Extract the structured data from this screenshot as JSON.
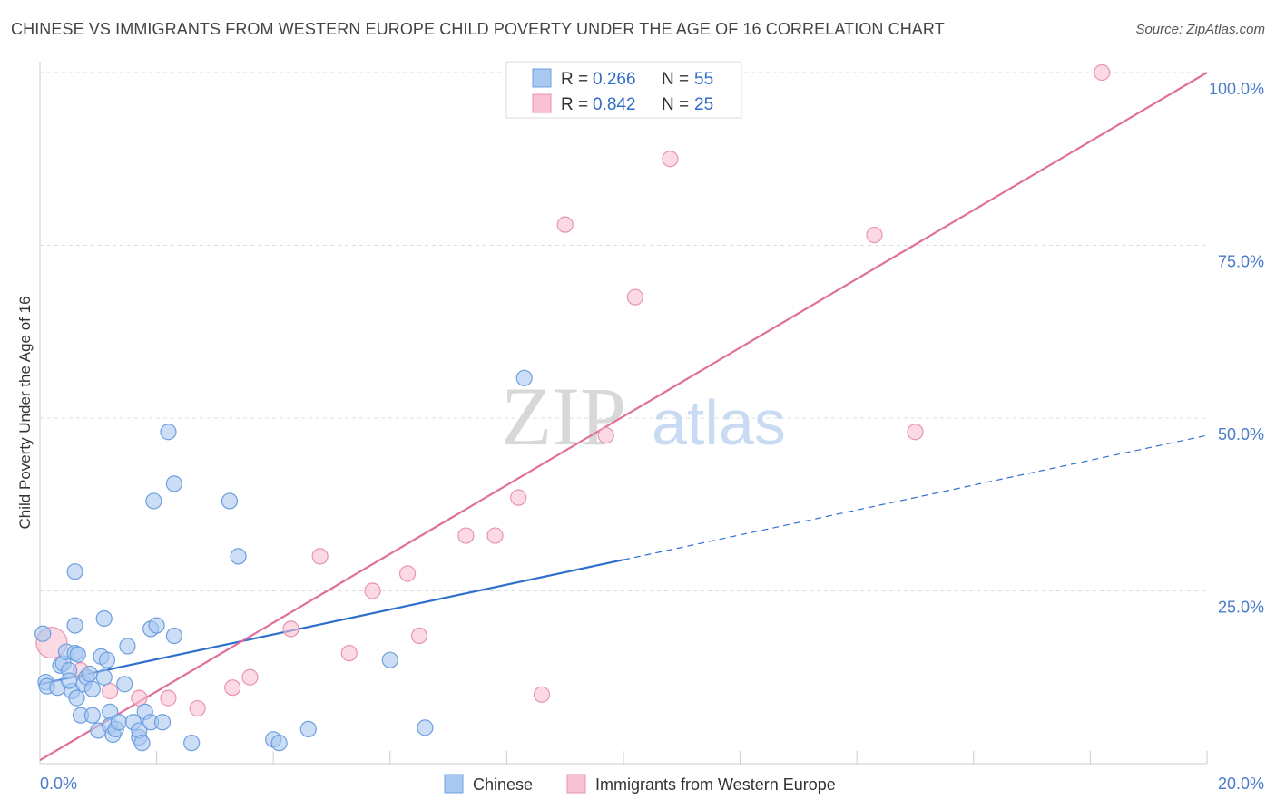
{
  "header": {
    "title": "CHINESE VS IMMIGRANTS FROM WESTERN EUROPE CHILD POVERTY UNDER THE AGE OF 16 CORRELATION CHART",
    "source": "Source: ZipAtlas.com"
  },
  "watermark": {
    "zip": "ZIP",
    "atlas": "atlas"
  },
  "colors": {
    "chinese_fill": "#a9c8f0",
    "chinese_stroke": "#6d9fe0",
    "chinese_line": "#2f6fcc",
    "western_fill": "#f8c2d2",
    "western_stroke": "#e993b1",
    "western_line": "#e0709a",
    "tick_text": "#4a7cc7"
  },
  "chart_data": {
    "type": "scatter",
    "title": "CHINESE VS IMMIGRANTS FROM WESTERN EUROPE CHILD POVERTY UNDER THE AGE OF 16 CORRELATION CHART",
    "xlabel": "",
    "ylabel": "Child Poverty Under the Age of 16",
    "xlim": [
      0,
      20
    ],
    "ylim": [
      0,
      100
    ],
    "x_tick_labels": [
      "0.0%",
      "20.0%"
    ],
    "y_tick_labels": [
      "25.0%",
      "50.0%",
      "75.0%",
      "100.0%"
    ],
    "y_tick_values": [
      25,
      50,
      75,
      100
    ],
    "legend": [
      {
        "label": "R = ",
        "r": "0.266",
        "n_label": "N = ",
        "n": "55"
      },
      {
        "label": "R = ",
        "r": "0.842",
        "n_label": "N = ",
        "n": "25"
      }
    ],
    "series": [
      {
        "name": "Chinese",
        "r": 0.266,
        "n": 55,
        "trend": {
          "x_start": 0,
          "y_start": 11.5,
          "x_solid_end": 10,
          "x_end": 20,
          "y_end": 47.5
        },
        "points": [
          [
            0.05,
            18.8
          ],
          [
            0.1,
            11.8
          ],
          [
            0.12,
            11.2
          ],
          [
            0.3,
            11.0
          ],
          [
            0.35,
            14.2
          ],
          [
            0.4,
            14.5
          ],
          [
            0.45,
            16.2
          ],
          [
            0.5,
            13.5
          ],
          [
            0.55,
            10.5
          ],
          [
            0.6,
            27.8
          ],
          [
            0.6,
            16.0
          ],
          [
            0.6,
            20.0
          ],
          [
            0.63,
            9.5
          ],
          [
            0.65,
            15.8
          ],
          [
            0.7,
            7.0
          ],
          [
            0.75,
            11.5
          ],
          [
            0.8,
            12.5
          ],
          [
            0.85,
            13.0
          ],
          [
            0.9,
            7.0
          ],
          [
            0.9,
            10.8
          ],
          [
            1.0,
            4.8
          ],
          [
            1.05,
            15.5
          ],
          [
            1.1,
            21.0
          ],
          [
            1.15,
            15.0
          ],
          [
            1.2,
            7.5
          ],
          [
            1.2,
            5.5
          ],
          [
            1.25,
            4.2
          ],
          [
            1.3,
            5.0
          ],
          [
            1.35,
            6.0
          ],
          [
            1.45,
            11.5
          ],
          [
            1.5,
            17.0
          ],
          [
            1.6,
            6.0
          ],
          [
            1.7,
            3.8
          ],
          [
            1.7,
            4.8
          ],
          [
            1.75,
            3.0
          ],
          [
            1.8,
            7.5
          ],
          [
            1.9,
            6.0
          ],
          [
            1.9,
            19.5
          ],
          [
            1.95,
            38.0
          ],
          [
            2.0,
            20.0
          ],
          [
            2.1,
            6.0
          ],
          [
            2.2,
            48.0
          ],
          [
            2.3,
            40.5
          ],
          [
            2.3,
            18.5
          ],
          [
            2.6,
            3.0
          ],
          [
            3.25,
            38.0
          ],
          [
            3.4,
            30.0
          ],
          [
            4.0,
            3.5
          ],
          [
            4.1,
            3.0
          ],
          [
            4.6,
            5.0
          ],
          [
            6.0,
            15.0
          ],
          [
            6.6,
            5.2
          ],
          [
            8.3,
            55.8
          ],
          [
            1.1,
            12.5
          ],
          [
            0.5,
            12.0
          ]
        ]
      },
      {
        "name": "Immigrants from Western Europe",
        "r": 0.842,
        "n": 25,
        "trend": {
          "x_start": 0,
          "y_start": 0.5,
          "x_end": 20,
          "y_end": 100
        },
        "points": [
          [
            0.2,
            17.5
          ],
          [
            0.7,
            13.5
          ],
          [
            1.2,
            10.5
          ],
          [
            1.7,
            9.5
          ],
          [
            2.2,
            9.5
          ],
          [
            2.7,
            8.0
          ],
          [
            3.3,
            11.0
          ],
          [
            3.6,
            12.5
          ],
          [
            4.3,
            19.5
          ],
          [
            4.8,
            30.0
          ],
          [
            5.3,
            16.0
          ],
          [
            5.7,
            25.0
          ],
          [
            6.3,
            27.5
          ],
          [
            6.5,
            18.5
          ],
          [
            7.3,
            33.0
          ],
          [
            7.8,
            33.0
          ],
          [
            8.2,
            38.5
          ],
          [
            8.6,
            10.0
          ],
          [
            9.0,
            78.0
          ],
          [
            9.7,
            47.5
          ],
          [
            10.2,
            67.5
          ],
          [
            10.8,
            87.5
          ],
          [
            14.3,
            76.5
          ],
          [
            15.0,
            48.0
          ],
          [
            18.2,
            100.0
          ]
        ]
      }
    ]
  }
}
